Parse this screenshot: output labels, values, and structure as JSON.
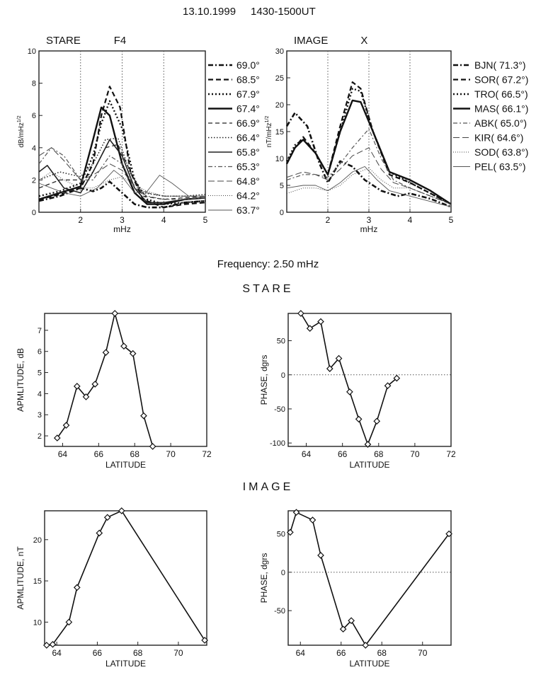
{
  "header": {
    "date": "13.10.1999",
    "time": "1430-1500UT"
  },
  "frequency_label": "Frequency: 2.50 mHz",
  "section_titles": {
    "stare": "STARE",
    "image": "IMAGE"
  },
  "chart_data": [
    {
      "id": "stare_spectrum",
      "type": "line",
      "title_left": "STARE",
      "title_right": "F4",
      "xlabel": "mHz",
      "ylabel": "dB/mHz",
      "ylabel_sup": "1/2",
      "xlim": [
        1.0,
        5.0
      ],
      "ylim": [
        0,
        10
      ],
      "xticks": [
        2,
        3,
        4,
        5
      ],
      "yticks": [
        0,
        2,
        4,
        6,
        8,
        10
      ],
      "vlines": [
        2,
        3,
        4
      ],
      "legend_position": "right",
      "series": [
        {
          "name": "69.0°",
          "style": "dashdot-bold",
          "x": [
            1.0,
            1.5,
            2.0,
            2.3,
            2.5,
            2.7,
            3.0,
            3.3,
            3.6,
            4.0,
            4.5,
            5.0
          ],
          "y": [
            0.7,
            1.0,
            1.5,
            1.3,
            1.5,
            1.9,
            1.2,
            0.5,
            0.3,
            0.3,
            0.6,
            0.7
          ]
        },
        {
          "name": "68.5°",
          "style": "dash-bold",
          "x": [
            1.0,
            1.5,
            2.0,
            2.3,
            2.5,
            2.7,
            2.95,
            3.2,
            3.5,
            4.0,
            4.5,
            5.0
          ],
          "y": [
            0.8,
            1.1,
            1.5,
            3.0,
            6.0,
            7.8,
            6.5,
            2.5,
            0.8,
            0.3,
            0.5,
            0.6
          ]
        },
        {
          "name": "67.9°",
          "style": "dot-bold",
          "x": [
            1.0,
            1.5,
            2.0,
            2.3,
            2.5,
            2.7,
            3.0,
            3.3,
            3.6,
            4.0,
            4.5,
            5.0
          ],
          "y": [
            1.0,
            1.3,
            1.8,
            3.5,
            5.5,
            6.9,
            5.2,
            2.0,
            0.8,
            0.5,
            0.6,
            0.7
          ]
        },
        {
          "name": "67.4°",
          "style": "solid-bold",
          "x": [
            1.0,
            1.5,
            2.0,
            2.3,
            2.5,
            2.7,
            3.0,
            3.3,
            3.6,
            4.0,
            4.5,
            5.0
          ],
          "y": [
            0.8,
            1.2,
            1.6,
            4.5,
            6.5,
            6.0,
            3.0,
            1.2,
            0.5,
            0.5,
            0.8,
            0.9
          ]
        },
        {
          "name": "66.9°",
          "style": "dash",
          "x": [
            1.0,
            1.5,
            2.0,
            2.3,
            2.6,
            2.9,
            3.2,
            3.5,
            4.0,
            4.5,
            5.0
          ],
          "y": [
            1.5,
            2.0,
            2.0,
            2.5,
            4.0,
            4.2,
            2.5,
            1.0,
            0.8,
            0.9,
            1.0
          ]
        },
        {
          "name": "66.4°",
          "style": "dot",
          "x": [
            1.0,
            1.5,
            2.0,
            2.3,
            2.6,
            2.9,
            3.2,
            3.5,
            4.0,
            4.5,
            5.0
          ],
          "y": [
            2.0,
            2.5,
            2.2,
            3.0,
            4.5,
            4.6,
            2.4,
            1.2,
            1.0,
            1.0,
            1.1
          ]
        },
        {
          "name": "65.8°",
          "style": "solid",
          "x": [
            1.0,
            1.2,
            1.6,
            2.0,
            2.3,
            2.7,
            3.0,
            3.3,
            3.6,
            4.0,
            4.5,
            5.0
          ],
          "y": [
            2.5,
            2.9,
            1.5,
            1.2,
            2.5,
            4.5,
            3.5,
            1.5,
            0.6,
            0.6,
            0.8,
            0.9
          ]
        },
        {
          "name": "65.3°",
          "style": "dashdot",
          "x": [
            1.0,
            1.3,
            1.6,
            2.0,
            2.3,
            2.7,
            3.0,
            3.3,
            3.6,
            4.0,
            4.5,
            5.0
          ],
          "y": [
            3.0,
            4.0,
            3.5,
            2.0,
            2.0,
            3.5,
            3.0,
            1.5,
            1.0,
            0.8,
            0.8,
            0.9
          ]
        },
        {
          "name": "64.8°",
          "style": "longdash",
          "x": [
            1.0,
            1.3,
            1.6,
            2.0,
            2.3,
            2.7,
            3.0,
            3.3,
            3.6,
            4.0,
            4.5,
            5.0
          ],
          "y": [
            3.5,
            4.0,
            3.2,
            2.0,
            2.3,
            3.0,
            2.6,
            1.6,
            1.2,
            1.0,
            1.0,
            1.0
          ]
        },
        {
          "name": "64.2°",
          "style": "finedot",
          "x": [
            1.0,
            1.3,
            1.6,
            2.0,
            2.3,
            2.7,
            3.0,
            3.3,
            3.6,
            4.0,
            4.5,
            5.0
          ],
          "y": [
            2.0,
            2.5,
            2.0,
            1.5,
            1.5,
            2.0,
            2.2,
            1.7,
            1.3,
            1.0,
            1.0,
            1.0
          ]
        },
        {
          "name": "63.7°",
          "style": "thin",
          "x": [
            1.0,
            1.3,
            1.6,
            2.0,
            2.4,
            2.8,
            3.0,
            3.3,
            3.6,
            3.9,
            4.2,
            4.6,
            5.0
          ],
          "y": [
            1.8,
            1.5,
            1.2,
            1.0,
            1.5,
            2.6,
            2.2,
            1.2,
            1.3,
            2.3,
            1.8,
            1.0,
            1.0
          ]
        }
      ]
    },
    {
      "id": "image_spectrum",
      "type": "line",
      "title_left": "IMAGE",
      "title_right": "X",
      "xlabel": "mHz",
      "ylabel": "nT/mHz",
      "ylabel_sup": "1/2",
      "xlim": [
        1.0,
        5.0
      ],
      "ylim": [
        0,
        30
      ],
      "xticks": [
        2,
        3,
        4,
        5
      ],
      "yticks": [
        0,
        5,
        10,
        15,
        20,
        25,
        30
      ],
      "vlines": [
        2,
        3,
        4
      ],
      "legend_position": "right",
      "series": [
        {
          "name": "BJN( 71.3°)",
          "style": "dashdot-bold",
          "x": [
            1.0,
            1.2,
            1.5,
            1.8,
            2.0,
            2.3,
            2.6,
            2.9,
            3.3,
            3.7,
            4.0,
            4.5,
            5.0
          ],
          "y": [
            16.0,
            18.5,
            16.0,
            9.0,
            5.5,
            9.5,
            8.5,
            6.0,
            4.0,
            3.0,
            3.5,
            2.5,
            1.0
          ]
        },
        {
          "name": "SOR( 67.2°)",
          "style": "dash-bold",
          "x": [
            1.0,
            1.2,
            1.4,
            1.7,
            2.0,
            2.3,
            2.6,
            2.8,
            3.1,
            3.5,
            4.0,
            4.5,
            5.0
          ],
          "y": [
            9.0,
            12.0,
            14.0,
            11.0,
            7.0,
            16.0,
            24.2,
            23.0,
            15.0,
            7.0,
            5.5,
            3.5,
            1.5
          ]
        },
        {
          "name": "TRO( 66.5°)",
          "style": "dot-bold",
          "x": [
            1.0,
            1.2,
            1.4,
            1.7,
            2.0,
            2.3,
            2.6,
            2.8,
            3.1,
            3.5,
            4.0,
            4.5,
            5.0
          ],
          "y": [
            9.5,
            12.5,
            13.5,
            11.0,
            7.0,
            15.0,
            23.0,
            22.5,
            15.0,
            7.5,
            5.5,
            3.5,
            1.5
          ]
        },
        {
          "name": "MAS( 66.1°)",
          "style": "solid-bold",
          "x": [
            1.0,
            1.2,
            1.4,
            1.7,
            2.0,
            2.3,
            2.6,
            2.8,
            3.1,
            3.5,
            4.0,
            4.5,
            5.0
          ],
          "y": [
            9.0,
            12.0,
            13.5,
            11.0,
            7.0,
            15.0,
            20.8,
            20.5,
            15.0,
            7.5,
            6.0,
            4.0,
            1.5
          ]
        },
        {
          "name": "ABK( 65.0°)",
          "style": "dashdot",
          "x": [
            1.0,
            1.4,
            1.7,
            2.0,
            2.3,
            2.6,
            3.0,
            3.3,
            3.6,
            4.0,
            4.5,
            5.0
          ],
          "y": [
            6.0,
            7.0,
            7.0,
            6.5,
            9.0,
            12.0,
            15.5,
            10.0,
            6.0,
            4.5,
            3.0,
            1.5
          ]
        },
        {
          "name": "KIR( 64.6°)",
          "style": "longdash",
          "x": [
            1.0,
            1.4,
            1.7,
            2.0,
            2.3,
            2.6,
            3.0,
            3.3,
            3.6,
            4.0,
            4.5,
            5.0
          ],
          "y": [
            6.5,
            7.5,
            7.0,
            6.0,
            8.0,
            10.5,
            12.0,
            8.0,
            5.5,
            4.5,
            3.0,
            1.5
          ]
        },
        {
          "name": "SOD( 63.8°)",
          "style": "finedot",
          "x": [
            1.0,
            1.4,
            1.7,
            2.0,
            2.3,
            2.6,
            3.0,
            3.3,
            3.6,
            4.0,
            4.5,
            5.0
          ],
          "y": [
            3.5,
            4.5,
            4.5,
            4.0,
            5.0,
            7.0,
            8.2,
            6.0,
            4.5,
            4.5,
            3.0,
            1.5
          ]
        },
        {
          "name": "PEL( 63.5°)",
          "style": "thin",
          "x": [
            1.0,
            1.4,
            1.7,
            2.0,
            2.3,
            2.6,
            2.9,
            3.2,
            3.5,
            4.0,
            4.5,
            5.0
          ],
          "y": [
            4.5,
            5.0,
            5.0,
            4.0,
            5.5,
            7.5,
            8.5,
            6.0,
            4.0,
            3.0,
            2.0,
            1.0
          ]
        }
      ]
    },
    {
      "id": "stare_amplitude",
      "type": "line",
      "markers": "diamond",
      "xlabel": "LATITUDE",
      "ylabel": "APMLITUDE, dB",
      "xlim": [
        63.0,
        72.0
      ],
      "ylim": [
        1.5,
        7.8
      ],
      "xticks": [
        64,
        66,
        68,
        70,
        72
      ],
      "yticks": [
        2,
        3,
        4,
        5,
        6,
        7
      ],
      "x": [
        63.7,
        64.2,
        64.8,
        65.3,
        65.8,
        66.4,
        66.9,
        67.4,
        67.9,
        68.5,
        69.0
      ],
      "y": [
        1.9,
        2.5,
        4.35,
        3.85,
        4.45,
        5.95,
        7.8,
        6.25,
        5.9,
        2.95,
        1.5
      ]
    },
    {
      "id": "stare_phase",
      "type": "line",
      "markers": "diamond",
      "xlabel": "LATITUDE",
      "ylabel": "PHASE, dgrs",
      "xlim": [
        63.0,
        72.0
      ],
      "ylim": [
        -105,
        90
      ],
      "xticks": [
        64,
        66,
        68,
        70,
        72
      ],
      "yticks": [
        -100,
        -50,
        0,
        50
      ],
      "hline": 0,
      "x": [
        63.7,
        64.2,
        64.8,
        65.3,
        65.8,
        66.4,
        66.9,
        67.4,
        67.9,
        68.5,
        69.0
      ],
      "y": [
        90,
        68,
        78,
        9,
        24,
        -25,
        -65,
        -102,
        -68,
        -16,
        -5
      ]
    },
    {
      "id": "image_amplitude",
      "type": "line",
      "markers": "diamond",
      "xlabel": "LATITUDE",
      "ylabel": "APMLITUDE, nT",
      "xlim": [
        63.4,
        71.4
      ],
      "ylim": [
        7.2,
        23.5
      ],
      "xticks": [
        64,
        66,
        68,
        70
      ],
      "yticks": [
        10,
        15,
        20
      ],
      "x": [
        63.5,
        63.8,
        64.6,
        65.0,
        66.1,
        66.5,
        67.2,
        71.3
      ],
      "y": [
        7.2,
        7.3,
        10.0,
        14.2,
        20.8,
        22.7,
        23.5,
        7.8
      ]
    },
    {
      "id": "image_phase",
      "type": "line",
      "markers": "diamond",
      "xlabel": "LATITUDE",
      "ylabel": "PHASE, dgrs",
      "xlim": [
        63.4,
        71.4
      ],
      "ylim": [
        -95,
        80
      ],
      "xticks": [
        64,
        66,
        68,
        70
      ],
      "yticks": [
        -50,
        0,
        50
      ],
      "hline": 0,
      "x": [
        63.5,
        63.8,
        64.6,
        65.0,
        66.1,
        66.5,
        67.2,
        71.3
      ],
      "y": [
        52,
        78,
        68,
        22,
        -74,
        -63,
        -95,
        50
      ]
    }
  ]
}
